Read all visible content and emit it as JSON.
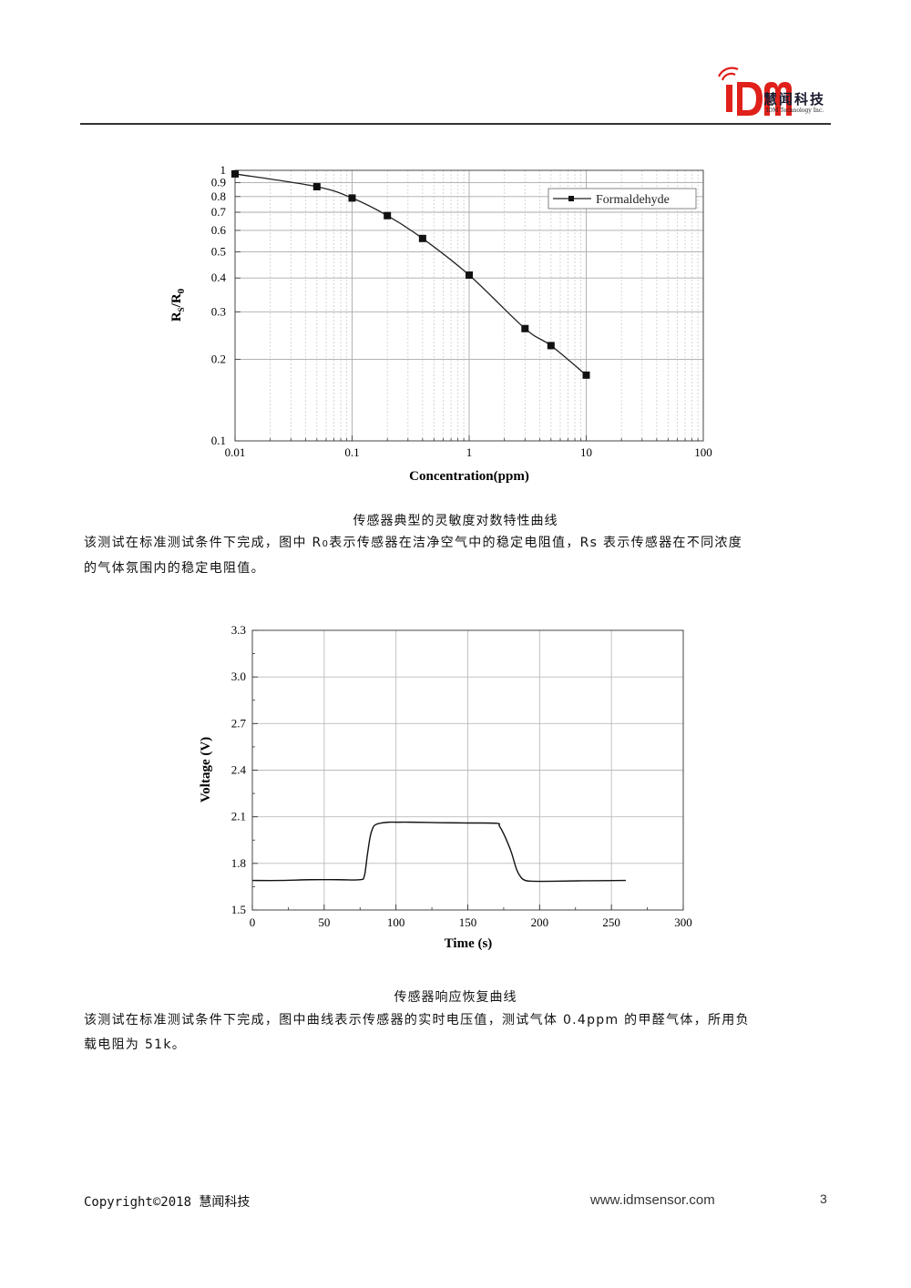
{
  "header": {
    "logo_mark": "iDM",
    "company_cn": "慧闻科技",
    "company_en": "IDM Technology Inc.",
    "brand_color": "#e0201a"
  },
  "figure1": {
    "caption": "传感器典型的灵敏度对数特性曲线",
    "chart_data": {
      "type": "line",
      "xscale": "log",
      "yscale": "log",
      "xlabel": "Concentration(ppm)",
      "ylabel": "Rs/R0",
      "xlim": [
        0.01,
        100
      ],
      "ylim": [
        0.1,
        1
      ],
      "x_ticks": [
        "0.01",
        "0.1",
        "1",
        "10",
        "100"
      ],
      "y_ticks": [
        "0.1",
        "0.2",
        "0.3",
        "0.4",
        "0.5",
        "0.6",
        "0.7",
        "0.8",
        "0.9",
        "1"
      ],
      "grid": true,
      "legend_position": "top-right",
      "series": [
        {
          "name": "Formaldehyde",
          "x": [
            0.01,
            0.05,
            0.1,
            0.2,
            0.4,
            1,
            3,
            5,
            10
          ],
          "y": [
            0.97,
            0.87,
            0.79,
            0.68,
            0.56,
            0.41,
            0.26,
            0.225,
            0.175
          ]
        }
      ]
    }
  },
  "para1": {
    "line1_a": "该测试在标准测试条件下完成，图中 R",
    "line1_sub": "0",
    "line1_b": "表示传感器在洁净空气中的稳定电阻值，Rs 表示传感器在不同浓度",
    "line2": "的气体氛围内的稳定电阻值。"
  },
  "figure2": {
    "caption": "传感器响应恢复曲线",
    "chart_data": {
      "type": "line",
      "xlabel": "Time (s)",
      "ylabel": "Voltage (V)",
      "xlim": [
        0,
        300
      ],
      "ylim": [
        1.5,
        3.3
      ],
      "x_ticks": [
        "0",
        "50",
        "100",
        "150",
        "200",
        "250",
        "300"
      ],
      "y_ticks": [
        "1.5",
        "1.8",
        "2.1",
        "2.4",
        "2.7",
        "3.0",
        "3.3"
      ],
      "grid": true,
      "series": [
        {
          "x": [
            0,
            20,
            40,
            60,
            75,
            78,
            80,
            82,
            84,
            86,
            90,
            95,
            100,
            110,
            130,
            150,
            170,
            172,
            175,
            180,
            184,
            187,
            190,
            195,
            210,
            230,
            260
          ],
          "y": [
            1.69,
            1.69,
            1.695,
            1.695,
            1.695,
            1.72,
            1.85,
            1.97,
            2.03,
            2.05,
            2.06,
            2.065,
            2.065,
            2.065,
            2.062,
            2.06,
            2.058,
            2.04,
            1.99,
            1.88,
            1.76,
            1.71,
            1.69,
            1.685,
            1.685,
            1.688,
            1.69
          ]
        }
      ]
    }
  },
  "para2": {
    "line1": "该测试在标准测试条件下完成，图中曲线表示传感器的实时电压值，测试气体 0.4ppm 的甲醛气体，所用负",
    "line2": "载电阻为 51k。"
  },
  "footer": {
    "copyright": "Copyright©2018 慧闻科技",
    "website": "www.idmsensor.com",
    "page_number": "3"
  }
}
